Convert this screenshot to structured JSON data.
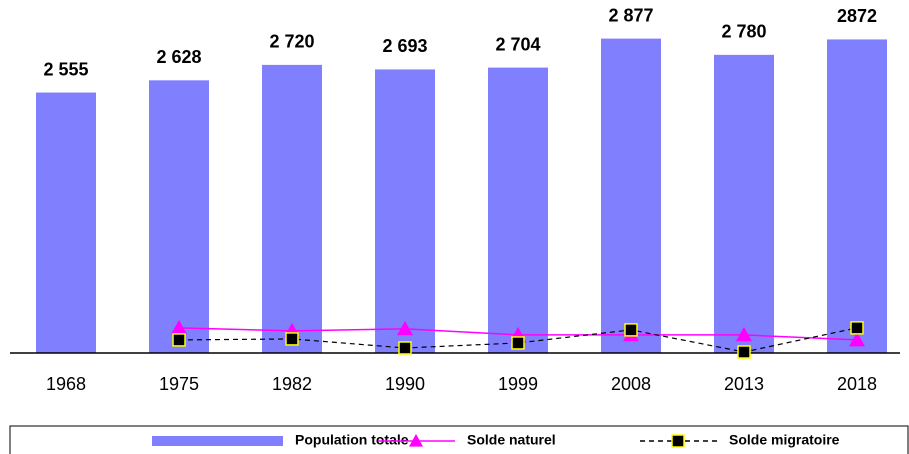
{
  "chart_data": {
    "type": "bar",
    "categories": [
      "1968",
      "1975",
      "1982",
      "1990",
      "1999",
      "2008",
      "2013",
      "2018"
    ],
    "ylim": [
      1000,
      3000
    ],
    "y2lim": [
      0,
      100
    ],
    "legend": "bottom",
    "series": [
      {
        "name": "Population totale",
        "color": "#8080ff",
        "type": "bar",
        "values": [
          2555,
          2628,
          2720,
          2693,
          2704,
          2877,
          2780,
          2872
        ],
        "value_labels": [
          "2 555",
          "2 628",
          "2 720",
          "2 693",
          "2 704",
          "2 877",
          "2 780",
          "2872"
        ]
      },
      {
        "name": "Solde naturel",
        "color": "#ff00ff",
        "type": "line",
        "axis": "y2",
        "values": [
          null,
          7.5,
          6.6,
          7.2,
          5.4,
          5.4,
          5.4,
          3.9
        ]
      },
      {
        "name": "Solde migratoire",
        "color": "#000000",
        "type": "line",
        "axis": "y2",
        "dashed": true,
        "values": [
          null,
          3.9,
          4.2,
          1.5,
          3.0,
          6.9,
          0.3,
          7.5
        ]
      }
    ]
  }
}
